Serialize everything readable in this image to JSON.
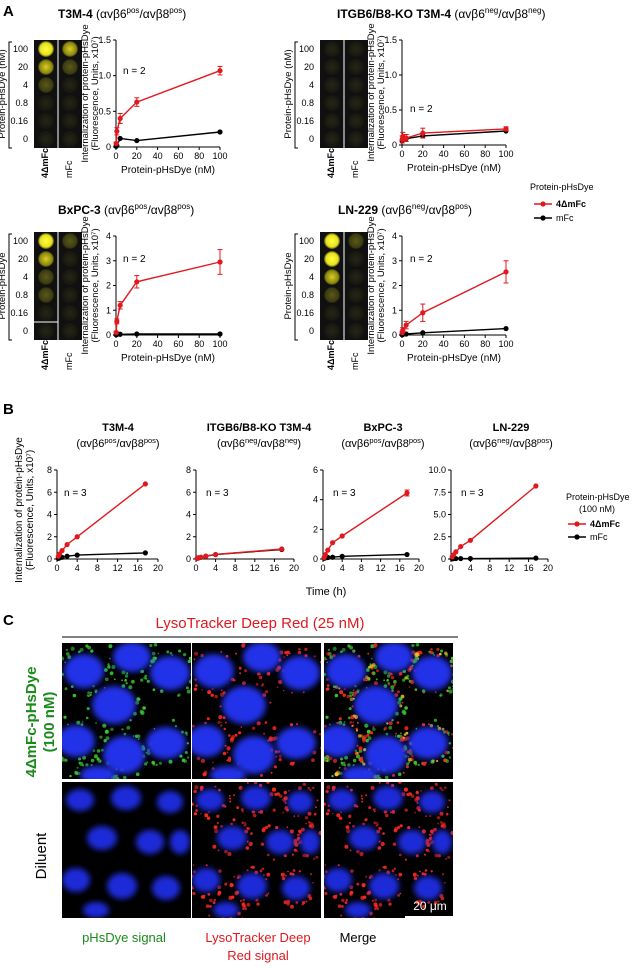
{
  "colors": {
    "red": "#e0191e",
    "black": "#000000",
    "well_bg": "#141414",
    "plate_frame": "#000000",
    "green_text": "#1a8a1a"
  },
  "panel_letters": [
    "A",
    "B",
    "C"
  ],
  "panelA": {
    "well_rows": [
      "100",
      "20",
      "4",
      "0.8",
      "0.16",
      "0"
    ],
    "plate_ylabel": "Protein-pHsDye (nM)",
    "plate_ylabel_short": "Protein-pHsDye",
    "col_labels": [
      "4ΔmFc",
      "mFc"
    ],
    "ylabel_1": "Internalization of protein-pHsDye",
    "ylabel_2": "(Fluorescence, Units, x10⁷)",
    "xlabel": "Protein-pHsDye (nM)",
    "legend_title": "Protein-pHsDye",
    "legend": [
      "4ΔmFc",
      "mFc"
    ],
    "n_label": "n = 2"
  },
  "panelB": {
    "ylabel_1": "Internalization of protein-pHsDye",
    "ylabel_2": "(Fluorescence, Units, x10⁷)",
    "xlabel": "Time (h)",
    "legend_title_1": "Protein-pHsDye",
    "legend_title_2": "(100 nM)",
    "legend": [
      "4ΔmFc",
      "mFc"
    ],
    "n_label": "n = 3"
  },
  "panelC": {
    "header": "LysoTracker Deep Red (25 nM)",
    "row_labels": [
      "4ΔmFc-pHsDye",
      "(100 nM)",
      "Diluent"
    ],
    "col_labels": [
      "pHsDye signal",
      "LysoTracker Deep",
      "Red signal",
      "Merge"
    ],
    "scale_bar": "20 μm"
  },
  "chart_data": [
    {
      "panel": "A",
      "type": "line",
      "title": "T3M-4 (αvβ6pos/αvβ8pos)",
      "xlabel": "Protein-pHsDye (nM)",
      "ylabel": "Internalization of protein-pHsDye (Fluorescence, Units, x10^7)",
      "xlim": [
        0,
        100
      ],
      "ylim": [
        0,
        1.5
      ],
      "xticks": [
        0,
        20,
        40,
        60,
        80,
        100
      ],
      "yticks": [
        0,
        0.5,
        1.0,
        1.5
      ],
      "series": [
        {
          "name": "4ΔmFc",
          "x": [
            0.16,
            0.8,
            4,
            20,
            100
          ],
          "y": [
            0.05,
            0.22,
            0.4,
            0.63,
            1.07
          ],
          "err": [
            0.02,
            0.05,
            0.07,
            0.06,
            0.06
          ]
        },
        {
          "name": "mFc",
          "x": [
            0.16,
            0.8,
            4,
            20,
            100
          ],
          "y": [
            0.01,
            0.02,
            0.12,
            0.09,
            0.21
          ],
          "err": [
            0,
            0,
            0,
            0,
            0
          ]
        }
      ]
    },
    {
      "panel": "A",
      "type": "line",
      "title": "ITGB6/B8-KO T3M-4 (αvβ6neg/αvβ8neg)",
      "xlabel": "Protein-pHsDye (nM)",
      "ylabel": "Internalization of protein-pHsDye (Fluorescence, Units, x10^7)",
      "xlim": [
        0,
        100
      ],
      "ylim": [
        0,
        1.5
      ],
      "xticks": [
        0,
        20,
        40,
        60,
        80,
        100
      ],
      "yticks": [
        0,
        0.5,
        1.0,
        1.5
      ],
      "series": [
        {
          "name": "4ΔmFc",
          "x": [
            0.16,
            0.8,
            4,
            20,
            100
          ],
          "y": [
            0.08,
            0.12,
            0.1,
            0.17,
            0.23
          ],
          "err": [
            0.05,
            0.06,
            0.05,
            0.07,
            0.03
          ]
        },
        {
          "name": "mFc",
          "x": [
            0.16,
            0.8,
            4,
            20,
            100
          ],
          "y": [
            0.06,
            0.08,
            0.09,
            0.13,
            0.2
          ],
          "err": [
            0,
            0,
            0,
            0,
            0
          ]
        }
      ]
    },
    {
      "panel": "A",
      "type": "line",
      "title": "BxPC-3 (αvβ6pos/αvβ8pos)",
      "xlabel": "Protein-pHsDye (nM)",
      "ylabel": "Internalization of protein-pHsDye (Fluorescence, Units, x10^7)",
      "xlim": [
        0,
        100
      ],
      "ylim": [
        0,
        4
      ],
      "xticks": [
        0,
        20,
        40,
        60,
        80,
        100
      ],
      "yticks": [
        0,
        1,
        2,
        3,
        4
      ],
      "series": [
        {
          "name": "4ΔmFc",
          "x": [
            0.16,
            0.8,
            4,
            20,
            100
          ],
          "y": [
            0.1,
            0.55,
            1.2,
            2.15,
            2.95
          ],
          "err": [
            0.05,
            0.1,
            0.15,
            0.25,
            0.5
          ]
        },
        {
          "name": "mFc",
          "x": [
            0.16,
            0.8,
            4,
            20,
            100
          ],
          "y": [
            0.01,
            0.02,
            0.03,
            0.04,
            0.04
          ],
          "err": [
            0,
            0,
            0,
            0,
            0
          ]
        }
      ]
    },
    {
      "panel": "A",
      "type": "line",
      "title": "LN-229 (αvβ6neg/αvβ8pos)",
      "xlabel": "Protein-pHsDye (nM)",
      "ylabel": "Internalization of protein-pHsDye (Fluorescence, Units, x10^7)",
      "xlim": [
        0,
        100
      ],
      "ylim": [
        0,
        4
      ],
      "xticks": [
        0,
        20,
        40,
        60,
        80,
        100
      ],
      "yticks": [
        0,
        1,
        2,
        3,
        4
      ],
      "series": [
        {
          "name": "4ΔmFc",
          "x": [
            0.16,
            0.8,
            4,
            20,
            100
          ],
          "y": [
            0.1,
            0.2,
            0.4,
            0.9,
            2.55
          ],
          "err": [
            0.05,
            0.1,
            0.15,
            0.35,
            0.45
          ]
        },
        {
          "name": "mFc",
          "x": [
            0.16,
            0.8,
            4,
            20,
            100
          ],
          "y": [
            0.01,
            0.02,
            0.04,
            0.09,
            0.26
          ],
          "err": [
            0,
            0,
            0,
            0,
            0
          ]
        }
      ]
    },
    {
      "panel": "B",
      "type": "line",
      "title": "T3M-4 (αvβ6pos/αvβ8pos)",
      "xlabel": "Time (h)",
      "xlim": [
        0,
        20
      ],
      "ylim": [
        0,
        8
      ],
      "xticks": [
        0,
        4,
        8,
        12,
        16,
        20
      ],
      "yticks": [
        0,
        2,
        4,
        6,
        8
      ],
      "series": [
        {
          "name": "4ΔmFc",
          "x": [
            0.25,
            0.5,
            1,
            2,
            4,
            17.5
          ],
          "y": [
            0.25,
            0.45,
            0.75,
            1.3,
            2.0,
            6.75
          ],
          "err": [
            0,
            0,
            0,
            0,
            0,
            0
          ]
        },
        {
          "name": "mFc",
          "x": [
            0.25,
            0.5,
            1,
            2,
            4,
            17.5
          ],
          "y": [
            0.05,
            0.1,
            0.15,
            0.25,
            0.35,
            0.55
          ],
          "err": [
            0,
            0,
            0,
            0,
            0,
            0
          ]
        }
      ]
    },
    {
      "panel": "B",
      "type": "line",
      "title": "ITGB6/B8-KO T3M-4 (αvβ6neg/αvβ8neg)",
      "xlabel": "Time (h)",
      "xlim": [
        0,
        20
      ],
      "ylim": [
        0,
        8
      ],
      "xticks": [
        0,
        4,
        8,
        12,
        16,
        20
      ],
      "yticks": [
        0,
        2,
        4,
        6,
        8
      ],
      "series": [
        {
          "name": "4ΔmFc",
          "x": [
            0.25,
            0.5,
            1,
            2,
            4,
            17.5
          ],
          "y": [
            0.05,
            0.1,
            0.15,
            0.25,
            0.4,
            0.9
          ],
          "err": [
            0,
            0,
            0,
            0,
            0,
            0
          ]
        },
        {
          "name": "mFc",
          "x": [
            0.25,
            0.5,
            1,
            2,
            4,
            17.5
          ],
          "y": [
            0.05,
            0.1,
            0.15,
            0.25,
            0.4,
            0.85
          ],
          "err": [
            0,
            0,
            0,
            0,
            0,
            0
          ]
        }
      ]
    },
    {
      "panel": "B",
      "type": "line",
      "title": "BxPC-3 (αvβ6pos/αvβ8pos)",
      "xlabel": "Time (h)",
      "xlim": [
        0,
        20
      ],
      "ylim": [
        0,
        6
      ],
      "xticks": [
        0,
        4,
        8,
        12,
        16,
        20
      ],
      "yticks": [
        0,
        2,
        4,
        6
      ],
      "series": [
        {
          "name": "4ΔmFc",
          "x": [
            0.25,
            0.5,
            1,
            2,
            4,
            17.5
          ],
          "y": [
            0.1,
            0.3,
            0.6,
            1.1,
            1.55,
            4.45
          ],
          "err": [
            0,
            0,
            0,
            0,
            0,
            0.2
          ]
        },
        {
          "name": "mFc",
          "x": [
            0.25,
            0.5,
            1,
            2,
            4,
            17.5
          ],
          "y": [
            0.05,
            0.08,
            0.1,
            0.12,
            0.18,
            0.3
          ],
          "err": [
            0,
            0,
            0,
            0,
            0,
            0
          ]
        }
      ]
    },
    {
      "panel": "B",
      "type": "line",
      "title": "LN-229 (αvβ6neg/αvβ8pos)",
      "xlabel": "Time (h)",
      "xlim": [
        0,
        20
      ],
      "ylim": [
        0,
        10
      ],
      "xticks": [
        0,
        4,
        8,
        12,
        16,
        20
      ],
      "yticks": [
        0,
        2.5,
        5.0,
        7.5,
        10.0
      ],
      "series": [
        {
          "name": "4ΔmFc",
          "x": [
            0.25,
            0.5,
            1,
            2,
            4,
            17.5
          ],
          "y": [
            0.25,
            0.45,
            0.8,
            1.4,
            2.1,
            8.2
          ],
          "err": [
            0,
            0,
            0,
            0,
            0,
            0
          ]
        },
        {
          "name": "mFc",
          "x": [
            0.25,
            0.5,
            1,
            2,
            4,
            17.5
          ],
          "y": [
            0.03,
            0.05,
            0.05,
            0.05,
            0.05,
            0.1
          ],
          "err": [
            0,
            0,
            0,
            0,
            0,
            0
          ]
        }
      ]
    }
  ]
}
